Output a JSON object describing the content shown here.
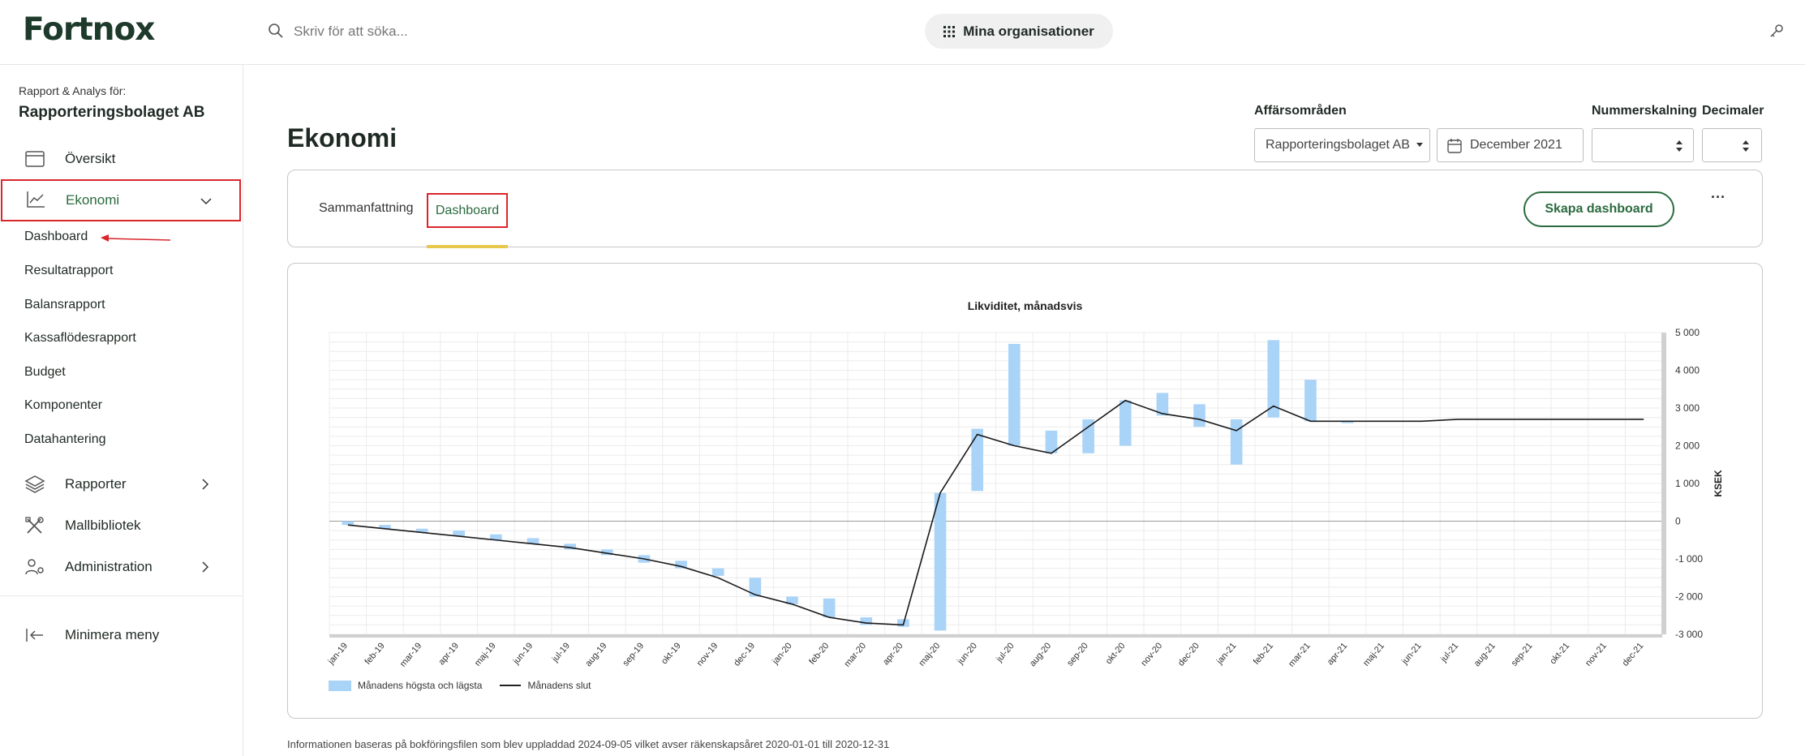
{
  "header": {
    "logo": "Fortnox",
    "search_placeholder": "Skriv för att söka...",
    "org_button": "Mina organisationer"
  },
  "sidebar": {
    "company_label": "Rapport & Analys för:",
    "company_name": "Rapporteringsbolaget AB",
    "items": [
      {
        "label": "Översikt",
        "icon": "calendar-window-icon"
      },
      {
        "label": "Ekonomi",
        "icon": "line-chart-icon"
      },
      {
        "label": "Rapporter",
        "icon": "layers-icon"
      },
      {
        "label": "Mallbibliotek",
        "icon": "tools-icon"
      },
      {
        "label": "Administration",
        "icon": "users-gear-icon"
      }
    ],
    "sub_items": [
      "Dashboard",
      "Resultatrapport",
      "Balansrapport",
      "Kassaflödesrapport",
      "Budget",
      "Komponenter",
      "Datahantering"
    ],
    "minimize": "Minimera meny"
  },
  "main": {
    "title": "Ekonomi",
    "filters": {
      "affarsomraden_label": "Affärsområden",
      "affarsomraden_value": "Rapporteringsbolaget AB",
      "date_value": "December 2021",
      "nummerskalning_label": "Nummerskalning",
      "decimaler_label": "Decimaler"
    },
    "tabs": [
      "Sammanfattning",
      "Dashboard"
    ],
    "create_button": "Skapa dashboard",
    "more_button": "···"
  },
  "footnote": "Informationen baseras på bokföringsfilen som blev uppladdad 2024-09-05 vilket avser räkenskapsåret 2020-01-01 till 2020-12-31",
  "colors": {
    "brand_green": "#2b6b3f",
    "bar_blue": "#a9d3f7",
    "highlight_red": "#d9262c",
    "tab_underline": "#e8c84a"
  },
  "chart_data": {
    "type": "bar",
    "title": "Likviditet, månadsvis",
    "ylabel": "KSEK",
    "ylim": [
      -3000,
      5000
    ],
    "yticks": [
      -3000,
      -2000,
      -1000,
      0,
      1000,
      2000,
      3000,
      4000,
      5000
    ],
    "ytick_labels": [
      "-3 000",
      "-2 000",
      "-1 000",
      "0",
      "1 000",
      "2 000",
      "3 000",
      "4 000",
      "5 000"
    ],
    "categories": [
      "jan-19",
      "feb-19",
      "mar-19",
      "apr-19",
      "maj-19",
      "jun-19",
      "jul-19",
      "aug-19",
      "sep-19",
      "okt-19",
      "nov-19",
      "dec-19",
      "jan-20",
      "feb-20",
      "mar-20",
      "apr-20",
      "maj-20",
      "jun-20",
      "jul-20",
      "aug-20",
      "sep-20",
      "okt-20",
      "nov-20",
      "dec-20",
      "jan-21",
      "feb-21",
      "mar-21",
      "apr-21",
      "maj-21",
      "jun-21",
      "jul-21",
      "aug-21",
      "sep-21",
      "okt-21",
      "nov-21",
      "dec-21"
    ],
    "series": [
      {
        "name": "Månadens högsta och lägsta",
        "kind": "range-bar",
        "high": [
          0,
          -100,
          -200,
          -250,
          -350,
          -450,
          -600,
          -750,
          -900,
          -1050,
          -1250,
          -1500,
          -2000,
          -2050,
          -2550,
          -2600,
          750,
          2450,
          4700,
          2400,
          2700,
          3200,
          3400,
          3100,
          2700,
          4800,
          3750,
          2650,
          null,
          null,
          null,
          null,
          null,
          null,
          null,
          null
        ],
        "low": [
          -100,
          -200,
          -300,
          -400,
          -500,
          -600,
          -750,
          -900,
          -1100,
          -1250,
          -1450,
          -2000,
          -2200,
          -2550,
          -2750,
          -2800,
          -2900,
          800,
          2000,
          1800,
          1800,
          2000,
          2800,
          2500,
          1500,
          2750,
          2650,
          2600,
          null,
          null,
          null,
          null,
          null,
          null,
          null,
          null
        ]
      },
      {
        "name": "Månadens slut",
        "kind": "line",
        "values": [
          -100,
          -200,
          -300,
          -400,
          -500,
          -600,
          -700,
          -850,
          -1000,
          -1200,
          -1500,
          -1950,
          -2200,
          -2550,
          -2700,
          -2750,
          750,
          2300,
          2000,
          1800,
          2500,
          3200,
          2850,
          2700,
          2400,
          3050,
          2650,
          2650,
          2650,
          2650,
          2700,
          2700,
          2700,
          2700,
          2700,
          2700
        ]
      }
    ],
    "grid": true,
    "legend": "bottom-left"
  }
}
